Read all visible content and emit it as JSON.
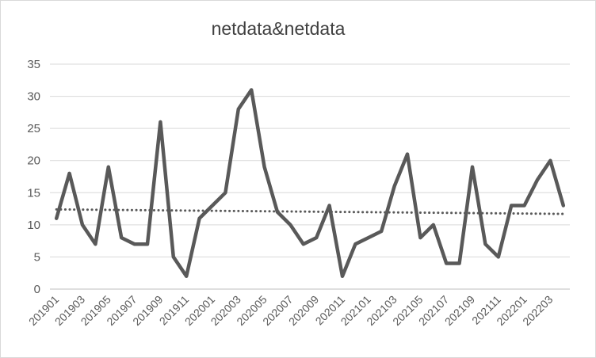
{
  "chart_data": {
    "type": "line",
    "title": "netdata&netdata",
    "xlabel": "",
    "ylabel": "",
    "ylim": [
      0,
      35
    ],
    "yticks": [
      0,
      5,
      10,
      15,
      20,
      25,
      30,
      35
    ],
    "grid": "horizontal",
    "legend": "none",
    "x": [
      "201901",
      "201902",
      "201903",
      "201904",
      "201905",
      "201906",
      "201907",
      "201908",
      "201909",
      "201910",
      "201911",
      "201912",
      "202001",
      "202002",
      "202003",
      "202004",
      "202005",
      "202006",
      "202007",
      "202008",
      "202009",
      "202010",
      "202011",
      "202012",
      "202101",
      "202102",
      "202103",
      "202104",
      "202105",
      "202106",
      "202107",
      "202108",
      "202109",
      "202110",
      "202111",
      "202112",
      "202201",
      "202202",
      "202203",
      "202204"
    ],
    "x_tick_labels": [
      "201901",
      "201903",
      "201905",
      "201907",
      "201909",
      "201911",
      "202001",
      "202003",
      "202005",
      "202007",
      "202009",
      "202011",
      "202101",
      "202103",
      "202105",
      "202107",
      "202109",
      "202111",
      "202201",
      "202203"
    ],
    "series": [
      {
        "values": [
          11,
          18,
          10,
          7,
          19,
          8,
          7,
          7,
          26,
          5,
          2,
          11,
          13,
          15,
          28,
          31,
          19,
          12,
          10,
          7,
          8,
          13,
          2,
          7,
          8,
          9,
          16,
          21,
          8,
          10,
          4,
          4,
          19,
          7,
          5,
          13,
          13,
          17,
          20,
          13
        ],
        "color": "#595959"
      }
    ],
    "trendline": {
      "type": "linear",
      "style": "dotted",
      "color": "#595959",
      "start": 12.4,
      "end": 11.7
    }
  }
}
